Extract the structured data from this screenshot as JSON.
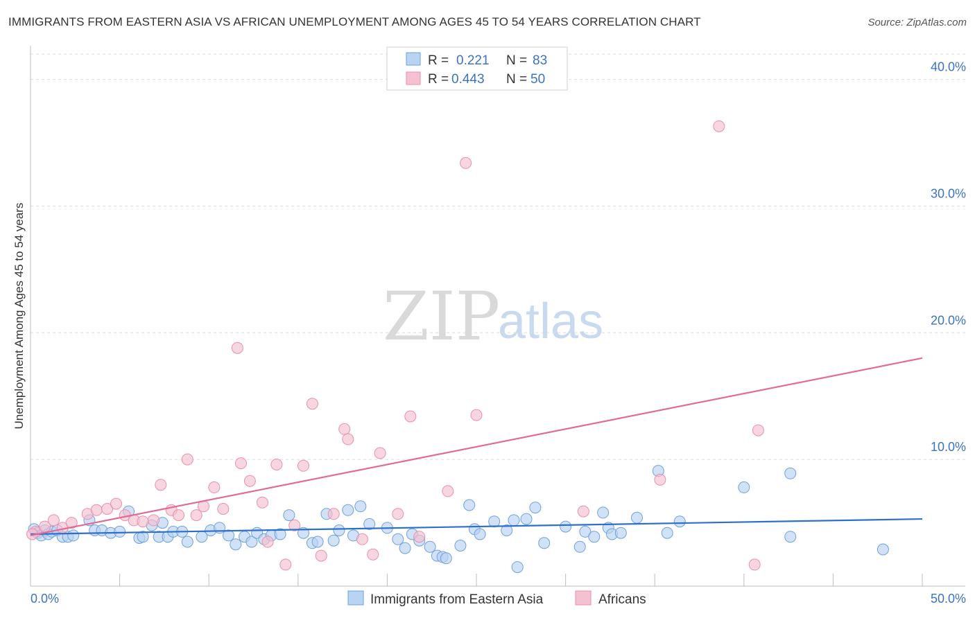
{
  "header": {
    "title": "IMMIGRANTS FROM EASTERN ASIA VS AFRICAN UNEMPLOYMENT AMONG AGES 45 TO 54 YEARS CORRELATION CHART",
    "source": "Source: ZipAtlas.com"
  },
  "watermark": {
    "part1": "ZIP",
    "part2": "atlas"
  },
  "legend": {
    "rows": [
      {
        "r_label": "R =",
        "r_value": "0.221",
        "n_label": "N =",
        "n_value": "83"
      },
      {
        "r_label": "R =",
        "r_value": "0.443",
        "n_label": "N =",
        "n_value": "50"
      }
    ]
  },
  "chart_data": {
    "type": "scatter",
    "title": "IMMIGRANTS FROM EASTERN ASIA VS AFRICAN UNEMPLOYMENT AMONG AGES 45 TO 54 YEARS CORRELATION CHART",
    "xlabel": "",
    "ylabel": "Unemployment Among Ages 45 to 54 years",
    "xlim": [
      0,
      50
    ],
    "ylim": [
      0,
      42
    ],
    "x_tick_labels": [
      "0.0%",
      "50.0%"
    ],
    "y_ticks": [
      10,
      20,
      30,
      40
    ],
    "y_tick_labels": [
      "10.0%",
      "20.0%",
      "30.0%",
      "40.0%"
    ],
    "grid": true,
    "legend_position": "top-center",
    "series": [
      {
        "name": "Immigrants from Eastern Asia",
        "color": "#6fa0dc",
        "fill": "#b9d3f2",
        "trend_color": "#2f6fcc",
        "trend": {
          "x": [
            0,
            50
          ],
          "y": [
            4.1,
            5.3
          ]
        },
        "points": [
          [
            0.2,
            4.5
          ],
          [
            0.4,
            4.2
          ],
          [
            0.6,
            4.0
          ],
          [
            0.8,
            4.4
          ],
          [
            1.0,
            4.1
          ],
          [
            1.2,
            4.3
          ],
          [
            1.5,
            4.4
          ],
          [
            1.8,
            3.9
          ],
          [
            2.1,
            3.9
          ],
          [
            2.4,
            4.0
          ],
          [
            3.3,
            5.2
          ],
          [
            3.6,
            4.4
          ],
          [
            4.0,
            4.4
          ],
          [
            4.5,
            4.2
          ],
          [
            5.0,
            4.3
          ],
          [
            5.5,
            5.9
          ],
          [
            6.1,
            3.8
          ],
          [
            6.3,
            3.9
          ],
          [
            6.8,
            4.8
          ],
          [
            7.2,
            3.9
          ],
          [
            7.4,
            5.0
          ],
          [
            7.7,
            3.9
          ],
          [
            8.0,
            4.3
          ],
          [
            8.5,
            4.3
          ],
          [
            8.8,
            3.5
          ],
          [
            9.6,
            3.9
          ],
          [
            10.1,
            4.4
          ],
          [
            10.6,
            4.6
          ],
          [
            11.1,
            4.0
          ],
          [
            11.5,
            3.3
          ],
          [
            12.0,
            3.9
          ],
          [
            12.4,
            3.5
          ],
          [
            12.7,
            4.2
          ],
          [
            13.1,
            3.7
          ],
          [
            13.5,
            4.0
          ],
          [
            14.0,
            4.1
          ],
          [
            14.5,
            5.6
          ],
          [
            15.3,
            4.2
          ],
          [
            15.8,
            3.4
          ],
          [
            16.1,
            3.5
          ],
          [
            16.6,
            5.7
          ],
          [
            17.0,
            3.6
          ],
          [
            17.3,
            4.4
          ],
          [
            17.8,
            6.0
          ],
          [
            18.1,
            4.0
          ],
          [
            18.5,
            6.3
          ],
          [
            19.0,
            4.9
          ],
          [
            20.0,
            4.6
          ],
          [
            20.6,
            3.7
          ],
          [
            21.0,
            3.0
          ],
          [
            21.4,
            4.1
          ],
          [
            21.8,
            3.6
          ],
          [
            22.4,
            3.1
          ],
          [
            22.8,
            2.4
          ],
          [
            23.1,
            2.3
          ],
          [
            23.3,
            2.2
          ],
          [
            24.1,
            3.2
          ],
          [
            24.6,
            6.4
          ],
          [
            24.9,
            4.5
          ],
          [
            25.2,
            4.1
          ],
          [
            26.0,
            5.1
          ],
          [
            26.7,
            4.4
          ],
          [
            27.1,
            5.2
          ],
          [
            27.3,
            1.5
          ],
          [
            27.8,
            5.3
          ],
          [
            28.3,
            6.2
          ],
          [
            28.8,
            3.4
          ],
          [
            30.0,
            4.7
          ],
          [
            30.8,
            3.1
          ],
          [
            31.1,
            4.3
          ],
          [
            31.6,
            3.9
          ],
          [
            32.1,
            5.8
          ],
          [
            32.4,
            4.6
          ],
          [
            32.6,
            4.1
          ],
          [
            33.1,
            4.2
          ],
          [
            34.0,
            5.4
          ],
          [
            35.2,
            9.1
          ],
          [
            35.7,
            4.2
          ],
          [
            36.4,
            5.1
          ],
          [
            40.0,
            7.8
          ],
          [
            42.6,
            3.9
          ],
          [
            42.6,
            8.9
          ],
          [
            47.8,
            2.9
          ]
        ]
      },
      {
        "name": "Africans",
        "color": "#e98fac",
        "fill": "#f5c0d0",
        "trend_color": "#e06b96",
        "trend": {
          "x": [
            0,
            50
          ],
          "y": [
            4.0,
            18.0
          ]
        },
        "points": [
          [
            0.3,
            4.3
          ],
          [
            0.8,
            4.7
          ],
          [
            1.3,
            5.2
          ],
          [
            1.8,
            4.6
          ],
          [
            2.3,
            5.0
          ],
          [
            3.2,
            5.7
          ],
          [
            3.7,
            6.0
          ],
          [
            4.3,
            6.1
          ],
          [
            4.8,
            6.5
          ],
          [
            5.3,
            5.6
          ],
          [
            5.8,
            5.2
          ],
          [
            6.3,
            5.1
          ],
          [
            6.9,
            5.2
          ],
          [
            7.3,
            8.0
          ],
          [
            7.9,
            6.0
          ],
          [
            8.3,
            5.6
          ],
          [
            8.8,
            10.0
          ],
          [
            9.3,
            5.6
          ],
          [
            9.7,
            6.3
          ],
          [
            10.3,
            7.8
          ],
          [
            10.8,
            6.1
          ],
          [
            11.6,
            18.8
          ],
          [
            11.8,
            9.7
          ],
          [
            12.3,
            8.3
          ],
          [
            13.0,
            6.6
          ],
          [
            13.3,
            3.5
          ],
          [
            13.8,
            9.6
          ],
          [
            14.3,
            1.7
          ],
          [
            14.8,
            4.8
          ],
          [
            15.3,
            9.5
          ],
          [
            15.8,
            14.4
          ],
          [
            16.3,
            2.4
          ],
          [
            17.0,
            5.7
          ],
          [
            17.6,
            12.4
          ],
          [
            17.8,
            11.6
          ],
          [
            18.6,
            3.7
          ],
          [
            19.2,
            2.5
          ],
          [
            19.6,
            10.5
          ],
          [
            20.6,
            5.7
          ],
          [
            21.3,
            13.4
          ],
          [
            21.8,
            3.9
          ],
          [
            23.4,
            7.5
          ],
          [
            24.4,
            33.4
          ],
          [
            25.0,
            13.5
          ],
          [
            31.0,
            5.9
          ],
          [
            35.3,
            8.4
          ],
          [
            38.6,
            36.3
          ],
          [
            40.6,
            1.7
          ],
          [
            40.8,
            12.3
          ],
          [
            0.1,
            4.1
          ]
        ]
      }
    ]
  },
  "bottom_legend": {
    "items": [
      {
        "label": "Immigrants from Eastern Asia"
      },
      {
        "label": "Africans"
      }
    ]
  }
}
